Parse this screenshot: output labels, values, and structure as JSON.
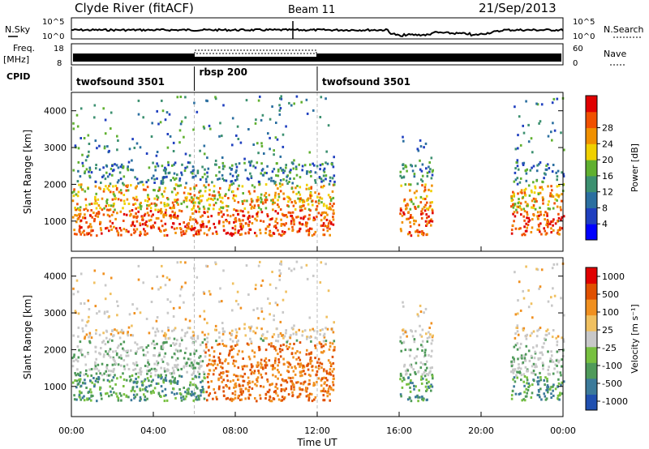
{
  "header": {
    "station": "Clyde River (fitACF)",
    "beam": "Beam 11",
    "date": "21/Sep/2013"
  },
  "noise_panel": {
    "left_label": "N.Sky",
    "right_label": "N.Search",
    "ticks_top": "10^5",
    "ticks_bottom": "10^0"
  },
  "freq_panel": {
    "left_label_1": "Freq.",
    "left_label_2": "[MHz]",
    "left_tick_top": "18",
    "left_tick_bottom": "8",
    "right_label": "Nave",
    "right_tick_top": "60",
    "right_tick_bottom": "0"
  },
  "cpid": {
    "label": "CPID",
    "segments": [
      {
        "name": "twofsound 3501",
        "start_hour": 0,
        "end_hour": 6
      },
      {
        "name": "rbsp 200",
        "start_hour": 6,
        "end_hour": 12
      },
      {
        "name": "twofsound 3501",
        "start_hour": 12,
        "end_hour": 24
      }
    ]
  },
  "colors": {
    "power_scale": [
      "#0000ff",
      "#1f3fbf",
      "#2b6fa0",
      "#3c9070",
      "#60b030",
      "#f0d000",
      "#f09000",
      "#f05000",
      "#e00000"
    ],
    "velocity_scale": [
      "#2050b0",
      "#3c7a9a",
      "#4f9a5a",
      "#77c040",
      "#c8c8c8",
      "#f0c060",
      "#f09020",
      "#e05000",
      "#e00000"
    ]
  },
  "chart_data": [
    {
      "type": "heatmap",
      "name": "power",
      "ylabel": "Slant Range [km]",
      "ylim": [
        180,
        4500
      ],
      "yticks": [
        1000,
        2000,
        3000,
        4000
      ],
      "xlim": [
        0,
        24
      ],
      "colorbar_label": "Power [dB]",
      "colorbar_ticks": [
        "4",
        "8",
        "12",
        "16",
        "20",
        "24",
        "28"
      ],
      "colorbar_range": [
        0,
        32
      ]
    },
    {
      "type": "heatmap",
      "name": "velocity",
      "ylabel": "Slant Range [km]",
      "ylim": [
        180,
        4500
      ],
      "yticks": [
        1000,
        2000,
        3000,
        4000
      ],
      "xlim": [
        0,
        24
      ],
      "colorbar_label": "Velocity [m s⁻¹]",
      "colorbar_ticks": [
        "1000",
        "500",
        "100",
        "25",
        "-25",
        "-100",
        "-500",
        "-1000"
      ]
    }
  ],
  "x_axis": {
    "ticks": [
      "00:00",
      "04:00",
      "08:00",
      "12:00",
      "16:00",
      "20:00",
      "00:00"
    ],
    "label": "Time UT"
  }
}
